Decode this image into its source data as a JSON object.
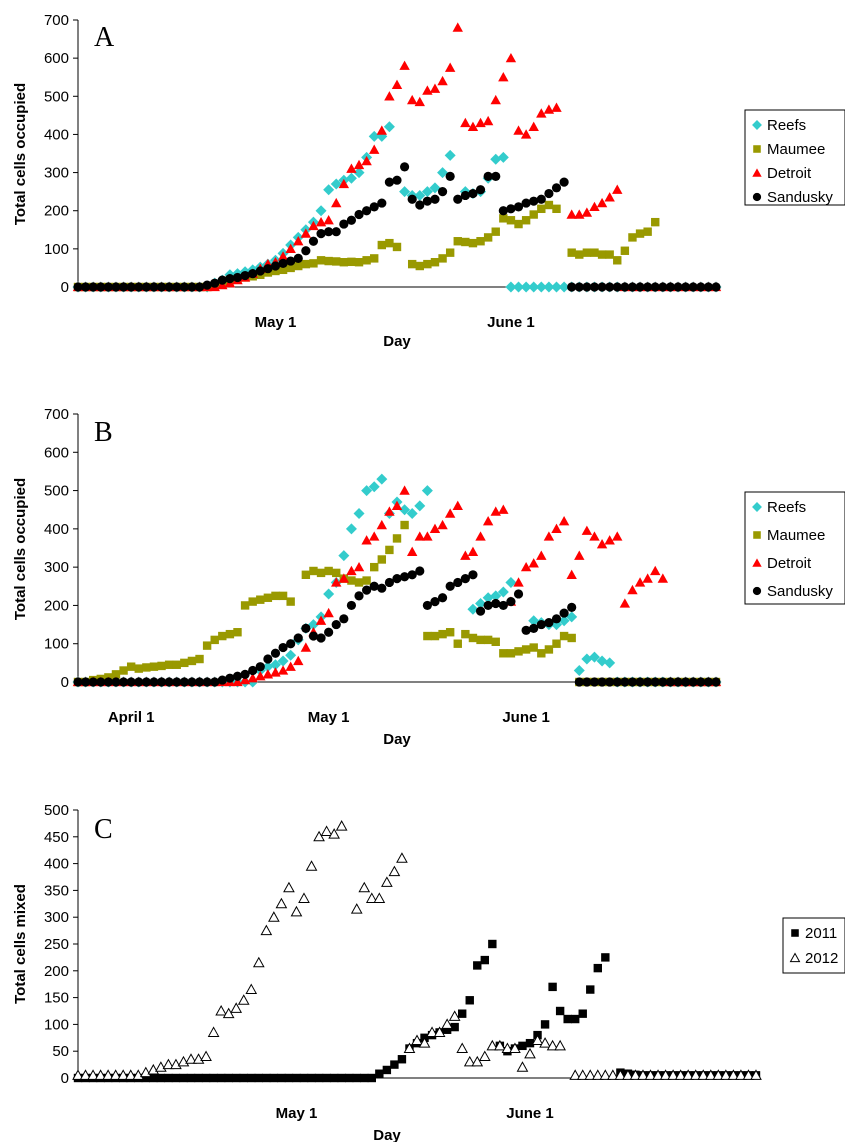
{
  "chart_data": [
    {
      "type": "scatter",
      "panel": "A",
      "xlabel": "Day",
      "ylabel": "Total cells occupied",
      "ylim": [
        0,
        700
      ],
      "yticks": [
        0,
        100,
        200,
        300,
        400,
        500,
        600,
        700
      ],
      "xlim": [
        0,
        84
      ],
      "x_tick_labels": [
        {
          "day": 26,
          "label": "May 1"
        },
        {
          "day": 57,
          "label": "June 1"
        }
      ],
      "legend": "right",
      "series": [
        {
          "name": "Reefs",
          "color": "#33CCCC",
          "marker": "diamond",
          "values": [
            0,
            0,
            0,
            0,
            0,
            0,
            0,
            0,
            0,
            0,
            0,
            0,
            0,
            0,
            0,
            0,
            0,
            0,
            10,
            18,
            32,
            35,
            40,
            45,
            52,
            60,
            70,
            88,
            110,
            130,
            150,
            170,
            200,
            255,
            270,
            280,
            285,
            300,
            340,
            395,
            395,
            420,
            null,
            250,
            240,
            240,
            250,
            260,
            300,
            345,
            null,
            250,
            245,
            250,
            285,
            335,
            340,
            0,
            0,
            0,
            0,
            0,
            0,
            0,
            0,
            0,
            0,
            0,
            0,
            0,
            0,
            0,
            0,
            0,
            0,
            0,
            0,
            0,
            0,
            0,
            0,
            0,
            0,
            0,
            0
          ]
        },
        {
          "name": "Maumee",
          "color": "#999900",
          "marker": "square",
          "values": [
            0,
            0,
            0,
            0,
            0,
            0,
            0,
            0,
            0,
            0,
            0,
            0,
            0,
            0,
            0,
            0,
            0,
            0,
            5,
            12,
            18,
            20,
            25,
            28,
            32,
            38,
            42,
            45,
            50,
            55,
            60,
            62,
            70,
            68,
            67,
            65,
            66,
            65,
            70,
            75,
            110,
            115,
            105,
            null,
            60,
            55,
            60,
            65,
            75,
            90,
            120,
            118,
            115,
            120,
            130,
            145,
            180,
            175,
            165,
            175,
            190,
            205,
            215,
            205,
            null,
            90,
            85,
            90,
            90,
            85,
            85,
            70,
            95,
            130,
            140,
            145,
            170,
            null,
            null,
            null,
            null,
            null,
            null,
            null,
            null
          ]
        },
        {
          "name": "Detroit",
          "color": "#FF0000",
          "marker": "triangle",
          "values": [
            0,
            0,
            0,
            0,
            0,
            0,
            0,
            0,
            0,
            0,
            0,
            0,
            0,
            0,
            0,
            0,
            0,
            0,
            0,
            5,
            10,
            18,
            25,
            35,
            48,
            60,
            65,
            80,
            100,
            120,
            140,
            160,
            170,
            175,
            220,
            270,
            310,
            320,
            330,
            360,
            410,
            500,
            530,
            580,
            490,
            485,
            515,
            520,
            540,
            575,
            680,
            430,
            420,
            430,
            435,
            490,
            550,
            600,
            410,
            400,
            420,
            455,
            465,
            470,
            null,
            190,
            190,
            195,
            210,
            220,
            235,
            255,
            0,
            0,
            0,
            0,
            0,
            0,
            0,
            0,
            0,
            0,
            0,
            0,
            0
          ]
        },
        {
          "name": "Sandusky",
          "color": "#000000",
          "marker": "circle",
          "values": [
            0,
            0,
            0,
            0,
            0,
            0,
            0,
            0,
            0,
            0,
            0,
            0,
            0,
            0,
            0,
            0,
            0,
            5,
            10,
            18,
            22,
            25,
            30,
            35,
            42,
            48,
            55,
            62,
            68,
            75,
            95,
            120,
            140,
            145,
            145,
            165,
            175,
            190,
            200,
            210,
            220,
            275,
            280,
            315,
            230,
            215,
            225,
            230,
            250,
            290,
            230,
            240,
            245,
            255,
            290,
            290,
            200,
            205,
            210,
            220,
            225,
            230,
            245,
            260,
            275,
            0,
            0,
            0,
            0,
            0,
            0,
            0,
            0,
            0,
            0,
            0,
            0,
            0,
            0,
            0,
            0,
            0,
            0,
            0,
            0
          ]
        }
      ]
    },
    {
      "type": "scatter",
      "panel": "B",
      "xlabel": "Day",
      "ylabel": "Total cells occupied",
      "ylim": [
        0,
        700
      ],
      "yticks": [
        0,
        100,
        200,
        300,
        400,
        500,
        600,
        700
      ],
      "xlim": [
        0,
        84
      ],
      "x_tick_labels": [
        {
          "day": 7,
          "label": "April 1"
        },
        {
          "day": 33,
          "label": "May 1"
        },
        {
          "day": 59,
          "label": "June 1"
        }
      ],
      "legend": "right",
      "series": [
        {
          "name": "Reefs",
          "color": "#33CCCC",
          "marker": "diamond",
          "values": [
            0,
            0,
            0,
            0,
            0,
            0,
            0,
            0,
            0,
            0,
            0,
            0,
            0,
            0,
            0,
            0,
            0,
            0,
            0,
            0,
            0,
            0,
            0,
            0,
            30,
            40,
            45,
            55,
            70,
            110,
            140,
            150,
            170,
            230,
            260,
            330,
            400,
            440,
            500,
            510,
            530,
            440,
            470,
            450,
            440,
            460,
            500,
            null,
            null,
            null,
            null,
            null,
            190,
            205,
            220,
            225,
            235,
            260,
            null,
            null,
            160,
            155,
            150,
            150,
            160,
            170,
            30,
            60,
            65,
            55,
            50,
            0,
            0,
            0,
            0,
            0,
            0,
            0,
            0,
            0,
            0,
            0,
            0,
            0,
            0
          ]
        },
        {
          "name": "Maumee",
          "color": "#999900",
          "marker": "square",
          "values": [
            0,
            0,
            5,
            8,
            12,
            20,
            30,
            40,
            35,
            38,
            40,
            42,
            45,
            45,
            50,
            55,
            60,
            95,
            110,
            120,
            125,
            130,
            200,
            210,
            215,
            220,
            225,
            225,
            210,
            null,
            280,
            290,
            285,
            290,
            285,
            270,
            265,
            260,
            265,
            300,
            320,
            345,
            375,
            410,
            null,
            null,
            120,
            120,
            125,
            130,
            100,
            125,
            115,
            110,
            110,
            105,
            75,
            75,
            80,
            85,
            90,
            75,
            85,
            100,
            120,
            115,
            0,
            0,
            0,
            0,
            0,
            0,
            0,
            0,
            0,
            0,
            0,
            0,
            0,
            0,
            0,
            0,
            0,
            0,
            0
          ]
        },
        {
          "name": "Detroit",
          "color": "#FF0000",
          "marker": "triangle",
          "values": [
            0,
            0,
            0,
            0,
            0,
            0,
            0,
            0,
            0,
            0,
            0,
            0,
            0,
            0,
            0,
            0,
            0,
            0,
            0,
            0,
            0,
            0,
            5,
            10,
            15,
            20,
            25,
            30,
            40,
            55,
            90,
            130,
            160,
            180,
            260,
            270,
            290,
            300,
            370,
            380,
            410,
            445,
            460,
            500,
            340,
            380,
            380,
            400,
            410,
            440,
            460,
            330,
            340,
            380,
            420,
            445,
            450,
            210,
            260,
            300,
            310,
            330,
            380,
            400,
            420,
            280,
            330,
            395,
            380,
            360,
            370,
            380,
            205,
            240,
            260,
            270,
            290,
            270,
            0,
            0,
            0,
            0,
            0,
            0,
            0
          ]
        },
        {
          "name": "Sandusky",
          "color": "#000000",
          "marker": "circle",
          "values": [
            0,
            0,
            0,
            0,
            0,
            0,
            0,
            0,
            0,
            0,
            0,
            0,
            0,
            0,
            0,
            0,
            0,
            0,
            0,
            5,
            10,
            15,
            20,
            30,
            40,
            60,
            75,
            90,
            100,
            115,
            140,
            120,
            115,
            130,
            150,
            165,
            200,
            225,
            240,
            250,
            245,
            260,
            270,
            275,
            280,
            290,
            200,
            210,
            220,
            250,
            260,
            270,
            280,
            185,
            200,
            205,
            200,
            210,
            230,
            135,
            140,
            150,
            155,
            165,
            180,
            195,
            0,
            0,
            0,
            0,
            0,
            0,
            0,
            0,
            0,
            0,
            0,
            0,
            0,
            0,
            0,
            0,
            0,
            0,
            0
          ]
        }
      ]
    },
    {
      "type": "scatter",
      "panel": "C",
      "xlabel": "Day",
      "ylabel": "Total cells mixed",
      "ylim": [
        0,
        500
      ],
      "yticks": [
        0,
        50,
        100,
        150,
        200,
        250,
        300,
        350,
        400,
        450,
        500
      ],
      "xlim": [
        0,
        90
      ],
      "x_tick_labels": [
        {
          "day": 29,
          "label": "May 1"
        },
        {
          "day": 60,
          "label": "June 1"
        }
      ],
      "legend": "right",
      "series": [
        {
          "name": "2011",
          "color": "#000000",
          "marker": "square",
          "values": [
            0,
            0,
            0,
            0,
            0,
            0,
            0,
            0,
            0,
            0,
            0,
            0,
            0,
            0,
            0,
            0,
            0,
            0,
            0,
            0,
            0,
            0,
            0,
            0,
            0,
            0,
            0,
            0,
            0,
            0,
            0,
            0,
            0,
            0,
            0,
            0,
            0,
            0,
            0,
            0,
            8,
            15,
            25,
            35,
            55,
            65,
            75,
            80,
            85,
            90,
            95,
            120,
            145,
            210,
            220,
            250,
            60,
            50,
            55,
            60,
            65,
            80,
            100,
            170,
            125,
            110,
            110,
            120,
            165,
            205,
            225,
            null,
            10,
            8,
            6,
            5,
            5,
            5,
            5,
            5,
            5,
            5,
            5,
            5,
            5,
            5,
            5,
            5,
            5,
            5,
            5
          ]
        },
        {
          "name": "2012",
          "color": "#000000",
          "marker": "open-triangle",
          "values": [
            5,
            5,
            5,
            5,
            5,
            5,
            5,
            5,
            5,
            10,
            15,
            20,
            25,
            25,
            30,
            35,
            35,
            40,
            85,
            125,
            120,
            130,
            145,
            165,
            215,
            275,
            300,
            325,
            355,
            310,
            335,
            395,
            450,
            460,
            455,
            470,
            null,
            315,
            355,
            335,
            335,
            365,
            385,
            410,
            55,
            70,
            65,
            85,
            85,
            100,
            115,
            55,
            30,
            30,
            40,
            60,
            60,
            55,
            55,
            20,
            45,
            70,
            65,
            60,
            60,
            null,
            5,
            5,
            5,
            5,
            5,
            5,
            5,
            5,
            5,
            5,
            5,
            5,
            5,
            5,
            5,
            5,
            5,
            5,
            5,
            5,
            5,
            5,
            5,
            5,
            5
          ]
        }
      ]
    }
  ]
}
